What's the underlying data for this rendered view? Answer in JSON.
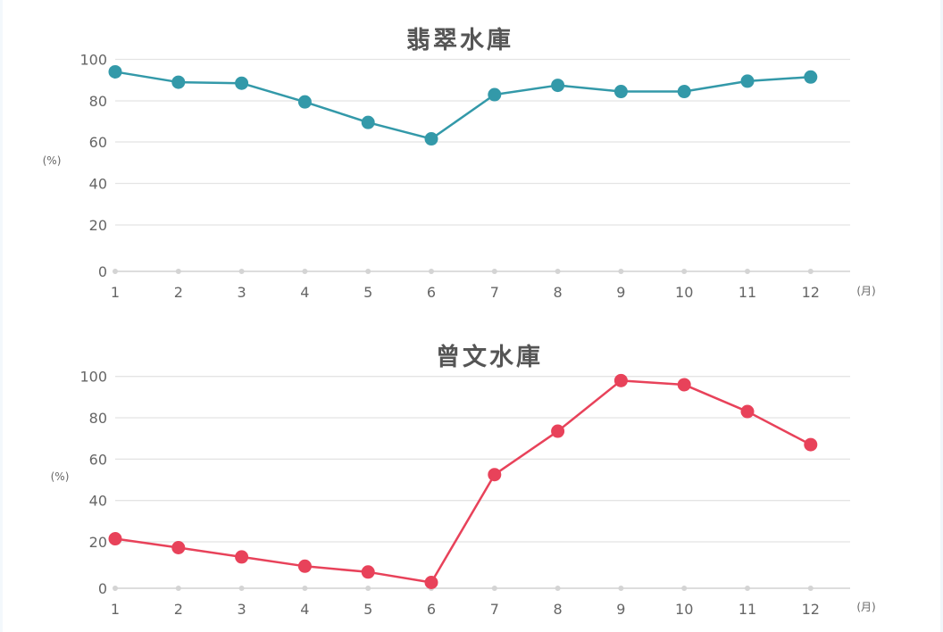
{
  "chart_data": [
    {
      "type": "line",
      "title": "翡翠水庫",
      "xlabel": "(月)",
      "ylabel": "(%)",
      "categories": [
        "1",
        "2",
        "3",
        "4",
        "5",
        "6",
        "7",
        "8",
        "9",
        "10",
        "11",
        "12"
      ],
      "series": [
        {
          "name": "翡翠水庫",
          "color": "#3399a9",
          "values": [
            94,
            89,
            88.5,
            79.5,
            69.5,
            61.5,
            83,
            87.5,
            84.5,
            84.5,
            89.5,
            91.5
          ]
        }
      ],
      "yticks": [
        "0",
        "20",
        "40",
        "60",
        "80",
        "100"
      ],
      "ylim": [
        0,
        100
      ],
      "grid": true,
      "legend": "none"
    },
    {
      "type": "line",
      "title": "曾文水庫",
      "xlabel": "(月)",
      "ylabel": "(%)",
      "categories": [
        "1",
        "2",
        "3",
        "4",
        "5",
        "6",
        "7",
        "8",
        "9",
        "10",
        "11",
        "12"
      ],
      "series": [
        {
          "name": "曾文水庫",
          "color": "#e8425a",
          "values": [
            21.5,
            17.5,
            13.5,
            9.5,
            7,
            2.5,
            52.5,
            73.5,
            98,
            96,
            83,
            67
          ]
        }
      ],
      "yticks": [
        "0",
        "20",
        "40",
        "60",
        "80",
        "100"
      ],
      "ylim": [
        0,
        100
      ],
      "grid": true,
      "legend": "none"
    }
  ]
}
